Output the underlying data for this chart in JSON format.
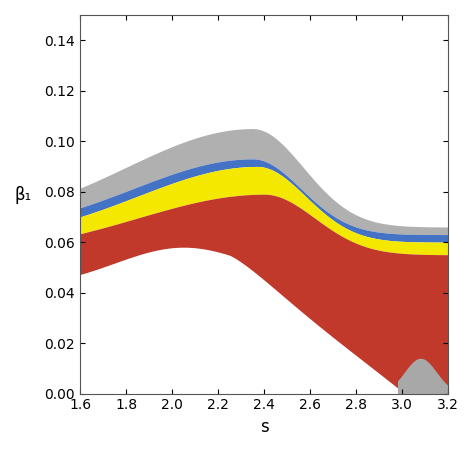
{
  "xlim": [
    1.6,
    3.2
  ],
  "ylim": [
    0,
    0.15
  ],
  "xlabel": "s",
  "ylabel": "β₁",
  "xticks": [
    1.6,
    1.8,
    2.0,
    2.2,
    2.4,
    2.6,
    2.8,
    3.0,
    3.2
  ],
  "yticks": [
    0,
    0.02,
    0.04,
    0.06,
    0.08,
    0.1,
    0.12,
    0.14
  ],
  "color_red": "#C0392B",
  "color_gray": "#A8A8A8",
  "color_yellow": "#F5E800",
  "color_blue": "#4472C4",
  "color_light_gray": "#B0B0B0",
  "bg_color": "#FFFFFF"
}
